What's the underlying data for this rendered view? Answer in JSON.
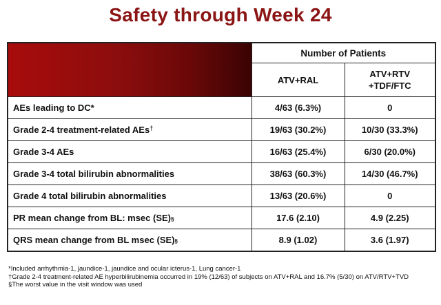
{
  "title": "Safety through Week 24",
  "table": {
    "group_header": "Number of Patients",
    "columns": [
      "ATV+RAL",
      "ATV+RTV",
      "+TDF/FTC"
    ],
    "rows": [
      {
        "label": "AEs leading to DC*",
        "suffix": "",
        "sup": "",
        "col1": "4/63 (6.3%)",
        "col2": "0"
      },
      {
        "label": "Grade 2-4 treatment-related AEs",
        "suffix": "",
        "sup": "†",
        "col1": "19/63 (30.2%)",
        "col2": "10/30 (33.3%)"
      },
      {
        "label": "Grade 3-4 AEs",
        "suffix": "",
        "sup": "",
        "col1": "16/63 (25.4%)",
        "col2": "6/30 (20.0%)"
      },
      {
        "label": "Grade 3-4 total bilirubin abnormalities",
        "suffix": "",
        "sup": "",
        "col1": "38/63 (60.3%)",
        "col2": "14/30 (46.7%)"
      },
      {
        "label": "Grade 4 total bilirubin abnormalities",
        "suffix": "",
        "sup": "",
        "col1": "13/63 (20.6%)",
        "col2": "0"
      },
      {
        "label": "PR mean change from BL: msec (SE)",
        "suffix": "§",
        "sup": "",
        "col1": "17.6 (2.10)",
        "col2": "4.9 (2.25)"
      },
      {
        "label": "QRS mean change from BL msec (SE)",
        "suffix": "§",
        "sup": "",
        "col1": "8.9 (1.02)",
        "col2": "3.6 (1.97)"
      }
    ]
  },
  "footnotes": [
    "*Included arrhythmia-1, jaundice-1, jaundice and ocular icterus-1, Lung cancer-1",
    "†Grade 2-4 treatment-related AE hyperbilirubinemia occurred in 19% (12/63) of subjects on ATV+RAL and 16.7% (5/30) on ATV/RTV+TVD",
    "§The worst value in the visit window was used"
  ]
}
